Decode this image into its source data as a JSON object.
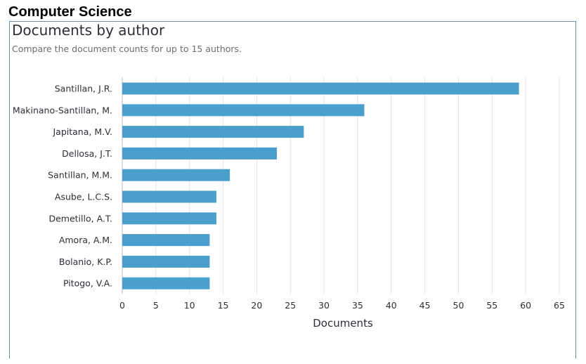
{
  "page": {
    "heading": "Computer Science"
  },
  "chart_data": {
    "type": "bar",
    "orientation": "horizontal",
    "title": "Documents by author",
    "subtitle": "Compare the document counts for up to 15 authors.",
    "xlabel": "Documents",
    "ylabel": "",
    "xlim": [
      0,
      65
    ],
    "xticks": [
      0,
      5,
      10,
      15,
      20,
      25,
      30,
      35,
      40,
      45,
      50,
      55,
      60,
      65
    ],
    "grid": true,
    "bar_color": "#4a9fcd",
    "categories": [
      "Santillan, J.R.",
      "Makinano-Santillan, M.",
      "Japitana, M.V.",
      "Dellosa, J.T.",
      "Santillan, M.M.",
      "Asube, L.C.S.",
      "Demetillo, A.T.",
      "Amora, A.M.",
      "Bolanio, K.P.",
      "Pitogo, V.A."
    ],
    "values": [
      59,
      36,
      27,
      23,
      16,
      14,
      14,
      13,
      13,
      13
    ]
  }
}
